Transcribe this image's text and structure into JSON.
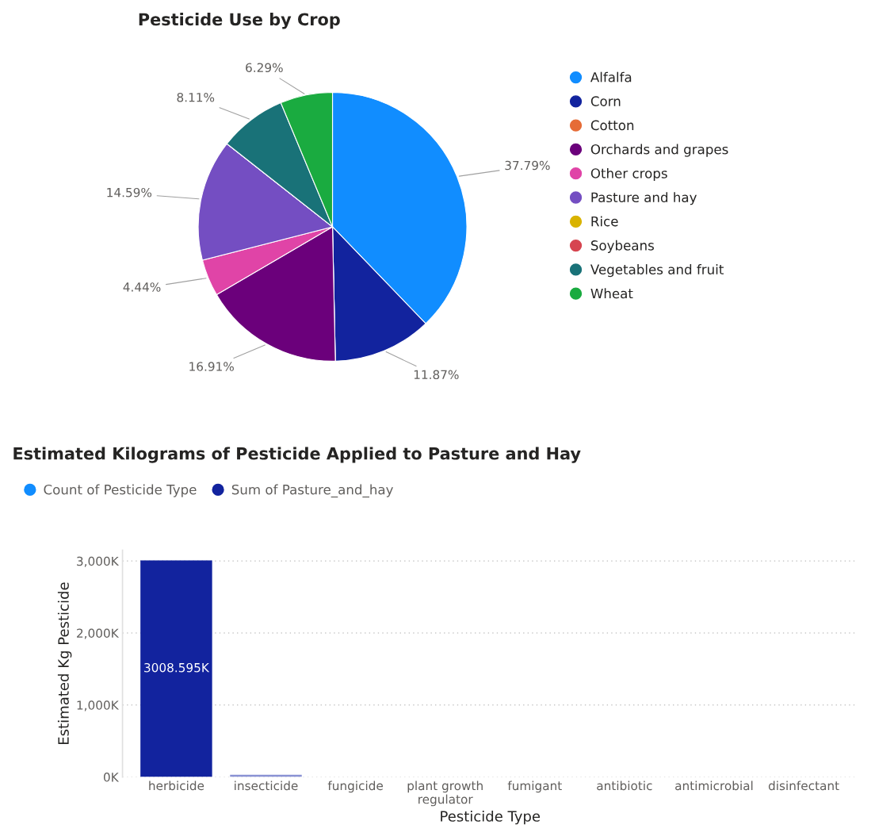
{
  "chart_data": [
    {
      "type": "pie",
      "title": "Pesticide Use by Crop",
      "categories": [
        "Alfalfa",
        "Corn",
        "Cotton",
        "Orchards and grapes",
        "Other crops",
        "Pasture and hay",
        "Rice",
        "Soybeans",
        "Vegetables and fruit",
        "Wheat"
      ],
      "values": [
        37.79,
        11.87,
        0,
        16.91,
        4.44,
        14.59,
        0,
        0,
        8.11,
        6.29
      ],
      "value_labels": [
        "37.79%",
        "11.87%",
        null,
        "16.91%",
        "4.44%",
        "14.59%",
        null,
        null,
        "8.11%",
        "6.29%"
      ],
      "colors": [
        "#118dff",
        "#12239e",
        "#e66c37",
        "#6b007b",
        "#e044a7",
        "#744ec2",
        "#d9b300",
        "#d64550",
        "#197278",
        "#1aab40"
      ],
      "legend": "right"
    },
    {
      "type": "bar",
      "title": "Estimated Kilograms of Pesticide Applied to Pasture and Hay",
      "xlabel": "Pesticide Type",
      "ylabel": "Estimated Kg Pesticide",
      "categories": [
        "herbicide",
        "insecticide",
        "fungicide",
        "plant growth\nregulator",
        "fumigant",
        "antibiotic",
        "antimicrobial",
        "disinfectant"
      ],
      "stacked": true,
      "series": [
        {
          "name": "Count of Pesticide Type",
          "color": "#118dff",
          "values": [
            0,
            0,
            0,
            0,
            0,
            0,
            0,
            0
          ]
        },
        {
          "name": "Sum of Pasture_and_hay",
          "color": "#12239e",
          "colors": [
            "#12239e",
            "#8a92d4",
            "#12239e",
            "#12239e",
            "#12239e",
            "#12239e",
            "#12239e",
            "#12239e"
          ],
          "values": [
            3008.595,
            30,
            0,
            0,
            0,
            0,
            0,
            0
          ],
          "value_labels": [
            "3008.595K",
            null,
            null,
            null,
            null,
            null,
            null,
            null
          ]
        }
      ],
      "ylim": [
        0,
        3150
      ],
      "yticks": [
        {
          "value": 0,
          "label": "0K"
        },
        {
          "value": 1000,
          "label": "1,000K"
        },
        {
          "value": 2000,
          "label": "2,000K"
        },
        {
          "value": 3000,
          "label": "3,000K"
        }
      ],
      "grid": "y",
      "legend": "top left"
    }
  ]
}
